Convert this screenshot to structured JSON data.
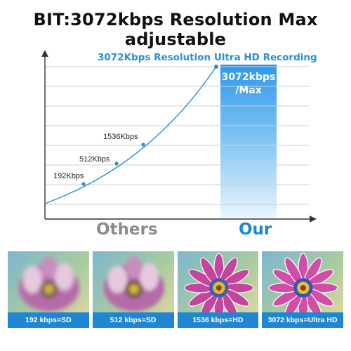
{
  "headline": "BIT:3072kbps Resolution Max adjustable",
  "chart_data": {
    "type": "line",
    "title": "3072Kbps Resolution Ultra HD Recording",
    "points": [
      {
        "label": "192Kbps",
        "value": 192
      },
      {
        "label": "512Kbps",
        "value": 512
      },
      {
        "label": "1536Kbps",
        "value": 1536
      },
      {
        "label": "",
        "value": 3072
      }
    ],
    "highlight_label_line1": "3072kbps",
    "highlight_label_line2": "/Max",
    "series_color": "#2d8fd6",
    "highlight_color": "#3aa0f0"
  },
  "comparison": {
    "others_label": "Others",
    "our_label": "Our"
  },
  "samples": [
    {
      "caption": "192 kbps=SD",
      "quality": "blurry"
    },
    {
      "caption": "512 kbps=SD",
      "quality": "blurry"
    },
    {
      "caption": "1536 kbps=HD",
      "quality": "sharp"
    },
    {
      "caption": "3072 kbps=Ultra HD",
      "quality": "sharp"
    }
  ]
}
